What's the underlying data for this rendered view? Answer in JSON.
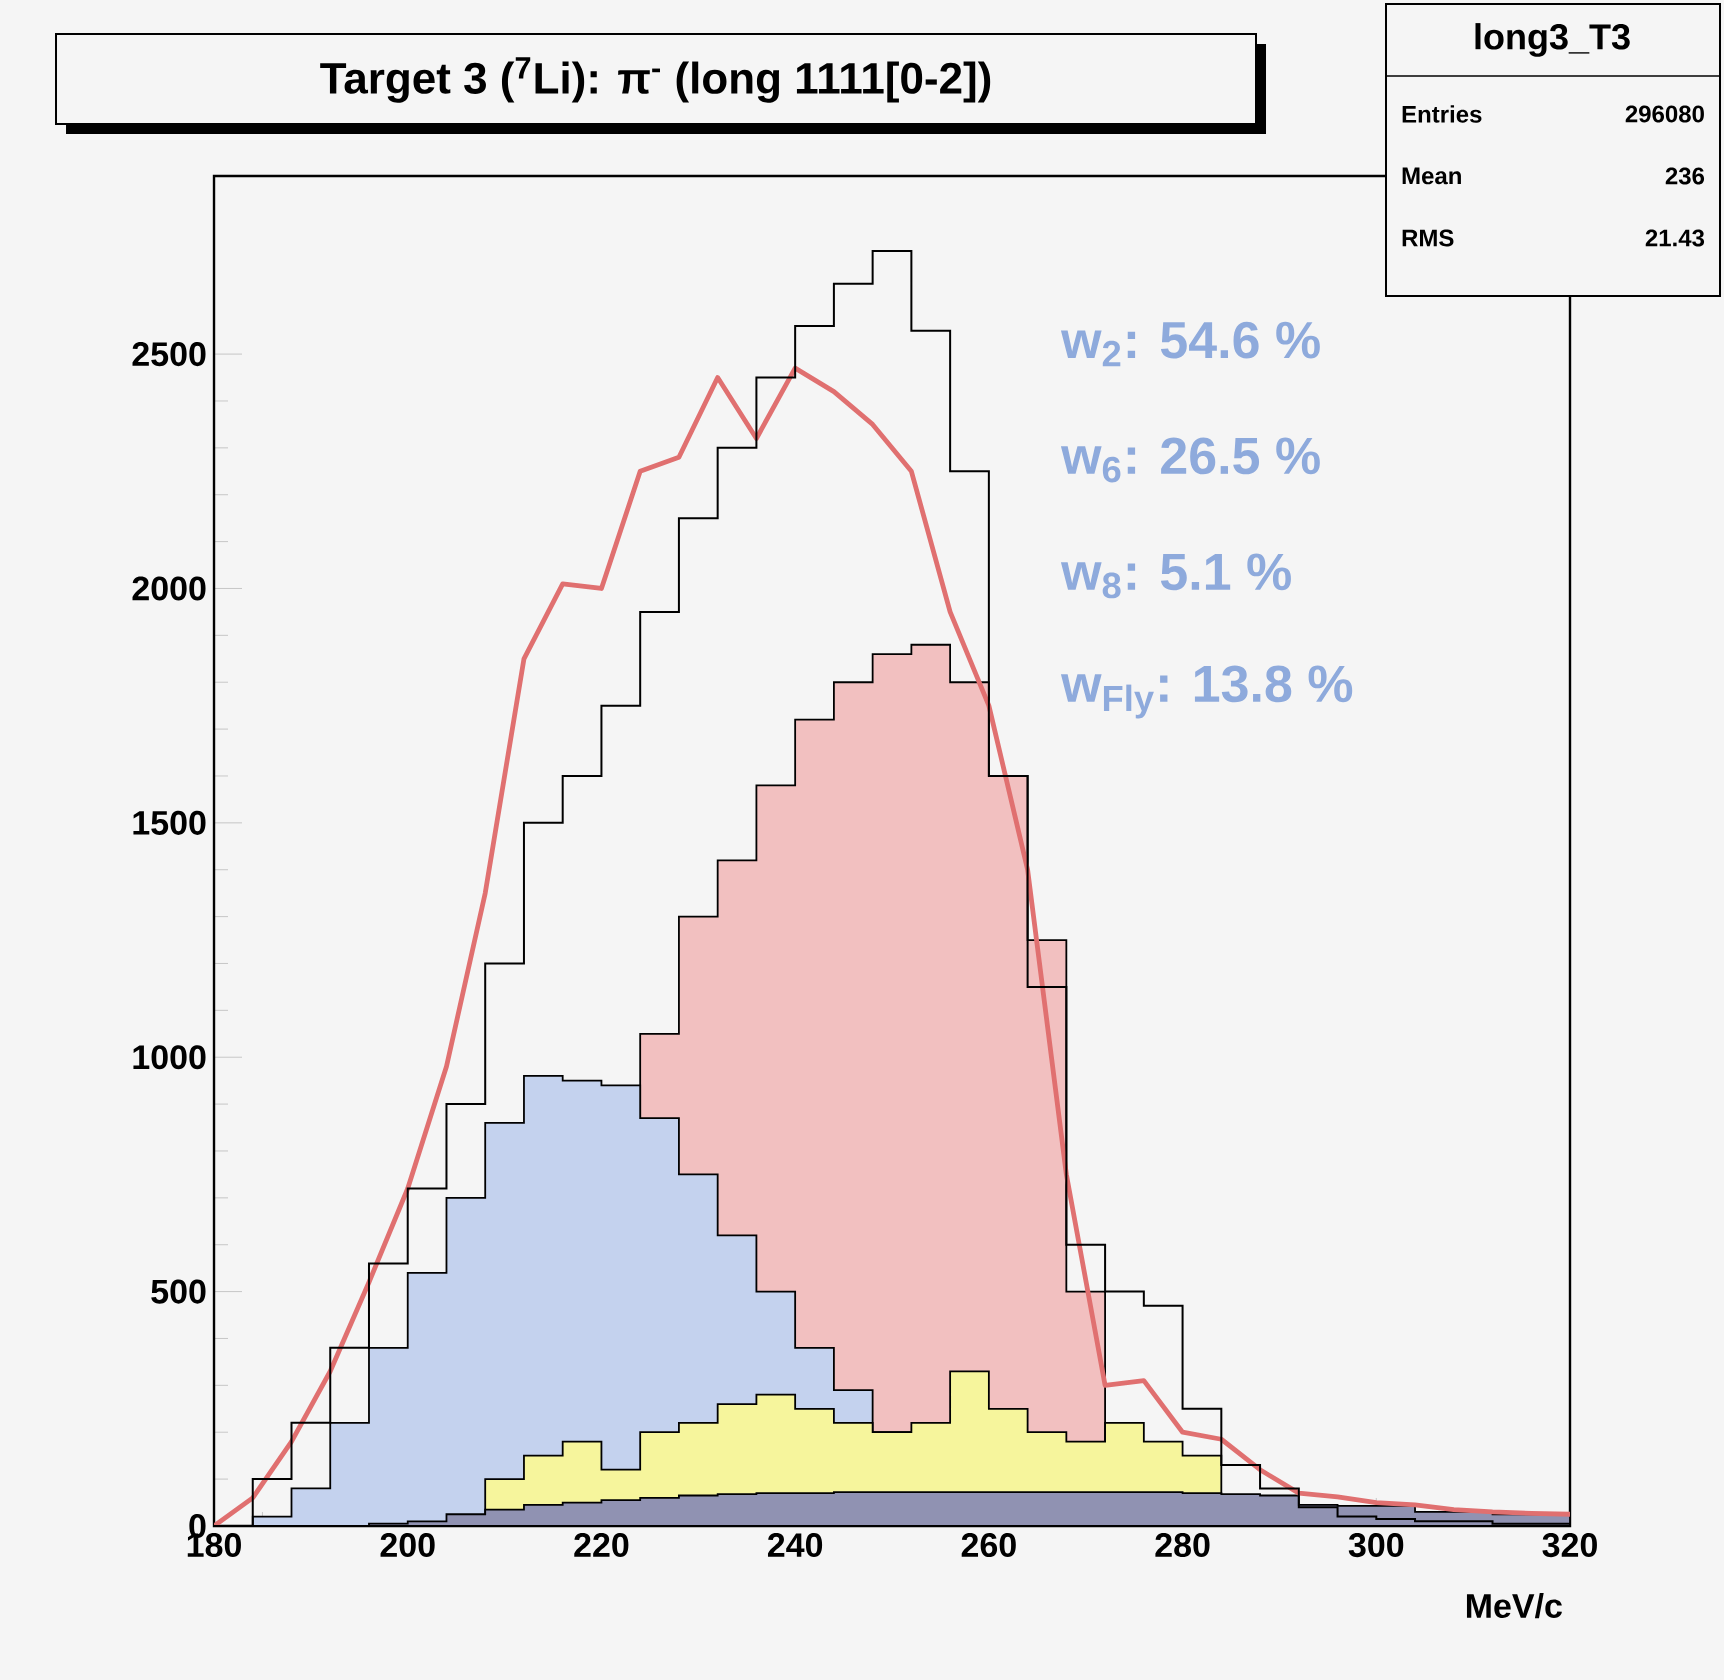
{
  "chart_data": {
    "type": "step",
    "title": "Target 3 ($^{7}$Li): π$^{-}$ (long 1111[0-2])",
    "xlabel": "MeV/c",
    "x": [
      180,
      184,
      188,
      192,
      196,
      200,
      204,
      208,
      212,
      216,
      220,
      224,
      228,
      232,
      236,
      240,
      244,
      248,
      252,
      256,
      260,
      264,
      268,
      272,
      276,
      280,
      284,
      288,
      292,
      296,
      300,
      304,
      308,
      312,
      316,
      320
    ],
    "series": [
      {
        "type": "area",
        "color": "#f2c0c0",
        "values": [
          0,
          0,
          0,
          0,
          0,
          0,
          null,
          null,
          null,
          null,
          null,
          1050,
          1300,
          1420,
          1580,
          1720,
          1800,
          1860,
          1880,
          1800,
          1600,
          1250,
          500,
          0,
          0,
          0,
          0,
          0,
          0,
          0,
          0,
          0,
          0,
          0,
          0,
          0
        ]
      },
      {
        "type": "area",
        "color": "#c4d2ee",
        "values": [
          0,
          20,
          80,
          220,
          380,
          540,
          700,
          860,
          960,
          950,
          940,
          870,
          750,
          620,
          500,
          380,
          290,
          200,
          null,
          null,
          null,
          0,
          0,
          0,
          0,
          0,
          0,
          0,
          0,
          0,
          0,
          0,
          0,
          0,
          0,
          0
        ]
      },
      {
        "type": "area",
        "color": "#f6f59c",
        "values": [
          0,
          0,
          0,
          0,
          0,
          0,
          0,
          100,
          150,
          180,
          120,
          200,
          220,
          260,
          280,
          250,
          220,
          200,
          220,
          330,
          250,
          200,
          180,
          220,
          180,
          150,
          null,
          null,
          0,
          0,
          0,
          0,
          0,
          0,
          0,
          0
        ]
      },
      {
        "type": "area",
        "color": "#9092b2",
        "values": [
          0,
          0,
          0,
          0,
          5,
          10,
          25,
          35,
          45,
          50,
          55,
          60,
          65,
          68,
          70,
          70,
          72,
          72,
          72,
          72,
          72,
          72,
          72,
          72,
          72,
          70,
          68,
          65,
          45,
          43,
          43,
          30,
          30,
          25,
          25,
          25
        ]
      },
      {
        "type": "step",
        "color": "#000000",
        "values": [
          0,
          100,
          220,
          380,
          560,
          720,
          900,
          1200,
          1500,
          1600,
          1750,
          1950,
          2150,
          2300,
          2450,
          2560,
          2650,
          2720,
          2550,
          2250,
          1600,
          1150,
          600,
          500,
          470,
          250,
          130,
          80,
          40,
          20,
          15,
          10,
          10,
          5,
          5,
          5
        ]
      },
      {
        "type": "line",
        "color": "#e07070",
        "values": [
          0,
          60,
          180,
          330,
          520,
          720,
          980,
          1350,
          1850,
          2010,
          2000,
          2250,
          2280,
          2450,
          2320,
          2470,
          2420,
          2350,
          2250,
          1950,
          1750,
          1400,
          750,
          300,
          310,
          200,
          185,
          120,
          70,
          62,
          50,
          45,
          35,
          30,
          27,
          25
        ]
      }
    ],
    "xlim": [
      180,
      320
    ],
    "ylim": [
      0,
      2880
    ],
    "xticks": [
      180,
      200,
      220,
      240,
      260,
      280,
      300,
      320
    ],
    "yticks": [
      0,
      500,
      1000,
      1500,
      2000,
      2500
    ],
    "annotations": [
      "w$_{2}$: 54.6 %",
      "w$_{6}$: 26.5 %",
      "w$_{8}$: 5.1 %",
      "w$_{Fly}$: 13.8 %",
      "long3_T3",
      "Entries",
      "296080",
      "Mean",
      "236",
      "RMS",
      "21.43"
    ],
    "grid": false
  }
}
